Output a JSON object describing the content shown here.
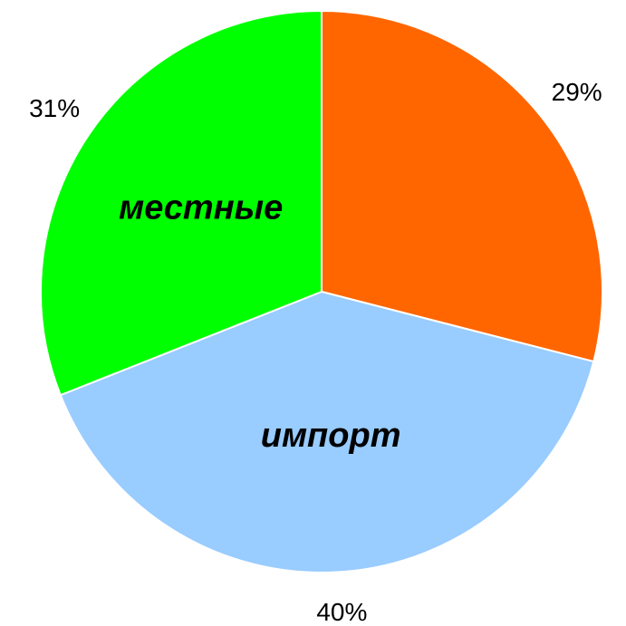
{
  "chart_data": {
    "type": "pie",
    "categories": [
      null,
      "импорт",
      "местные"
    ],
    "values": [
      29,
      40,
      31
    ],
    "value_labels": [
      "29%",
      "40%",
      "31%"
    ],
    "colors": [
      "#ff6600",
      "#99ccff",
      "#00ff00"
    ]
  }
}
